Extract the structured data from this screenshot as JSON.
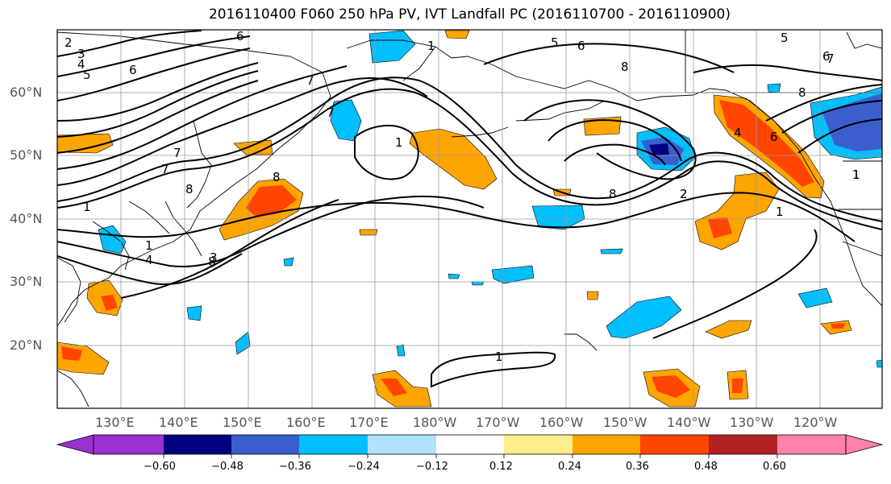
{
  "title": "2016110400 F060 250 hPa PV, IVT Landfall PC (2016110700 - 2016110900)",
  "map": {
    "lat_labels": [
      "60°N",
      "50°N",
      "40°N",
      "30°N",
      "20°N"
    ],
    "lon_labels": [
      "130°E",
      "140°E",
      "150°E",
      "160°E",
      "170°E",
      "180°W",
      "170°W",
      "160°W",
      "150°W",
      "140°W",
      "130°W",
      "120°W"
    ],
    "contour_labels": [
      "2",
      "3",
      "4",
      "5",
      "6",
      "7",
      "8",
      "1",
      "6",
      "7",
      "8",
      "1",
      "1",
      "8",
      "3",
      "4",
      "5",
      "6",
      "7",
      "8",
      "1",
      "2",
      "5",
      "6",
      "7",
      "8",
      "4",
      "6",
      "7",
      "1",
      "8",
      "1",
      "1",
      "1",
      "2"
    ]
  },
  "colorbar": {
    "ticks": [
      "−0.60",
      "−0.48",
      "−0.36",
      "−0.24",
      "−0.12",
      "0.12",
      "0.24",
      "0.36",
      "0.48",
      "0.60"
    ],
    "colors": [
      "#9b30d0",
      "#000080",
      "#3a5fcd",
      "#00bfff",
      "#b0e2ff",
      "#ffffff",
      "#ffec8b",
      "#ffa500",
      "#ff4500",
      "#b22222",
      "#ff82ab"
    ]
  }
}
